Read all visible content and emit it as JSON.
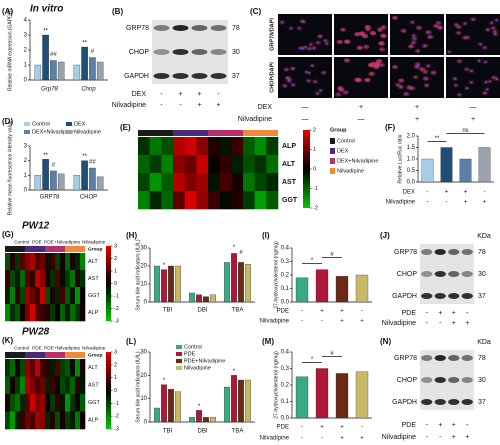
{
  "title": "In vitro",
  "sections": [
    "PW12",
    "PW28"
  ],
  "chart_data": [
    {
      "type": "bar",
      "label": "(A)",
      "ylabel": "Relative mRNA expression (GAPDH)",
      "categories": [
        "Grp78",
        "Chop"
      ],
      "series": [
        {
          "color": "#a6cde3",
          "values": [
            1.0,
            1.0
          ]
        },
        {
          "color": "#1f4e79",
          "values": [
            3.0,
            2.2
          ]
        },
        {
          "color": "#5b7fa6",
          "values": [
            1.3,
            1.5
          ]
        },
        {
          "color": "#9aa3ad",
          "values": [
            1.2,
            1.2
          ]
        }
      ],
      "ylim": [
        0,
        4
      ],
      "yticks": [
        0,
        1,
        2,
        3,
        4
      ],
      "annotations": [
        "**",
        "##",
        "**",
        "#"
      ]
    },
    {
      "type": "bar",
      "label": "(D)",
      "ylabel": "Relative mean fluorescence intensity value",
      "categories": [
        "GRP78",
        "CHOP"
      ],
      "series": [
        {
          "name": "Control",
          "color": "#a6cde3",
          "values": [
            1.0,
            1.0
          ]
        },
        {
          "name": "DEX",
          "color": "#1f4e79",
          "values": [
            2.1,
            2.0
          ]
        },
        {
          "name": "DEX+Nilvadipine",
          "color": "#5b7fa6",
          "values": [
            1.3,
            1.5
          ]
        },
        {
          "name": "Nilvadipine",
          "color": "#9aa3ad",
          "values": [
            1.1,
            0.9
          ]
        }
      ],
      "ylim": [
        0,
        3
      ],
      "yticks": [
        0,
        1,
        2,
        3
      ],
      "annotations": [
        "**",
        "#",
        "**",
        "##"
      ]
    },
    {
      "type": "heatmap",
      "label": "(E)",
      "rows": [
        "ALP",
        "ALT",
        "AST",
        "GGT"
      ],
      "values": [
        [
          -0.5,
          -1.2,
          -0.8,
          1.5,
          1.8,
          1.2,
          0.3,
          -0.2,
          0.5,
          -0.9,
          -1.4,
          -0.6
        ],
        [
          -1.0,
          -0.6,
          -1.3,
          1.2,
          0.9,
          1.7,
          0.1,
          0.4,
          -0.3,
          -0.8,
          -0.5,
          -1.1
        ],
        [
          -0.7,
          -1.5,
          -0.9,
          1.6,
          1.1,
          1.4,
          -0.2,
          0.6,
          0.2,
          -1.2,
          -0.7,
          -0.4
        ],
        [
          -1.3,
          -0.4,
          -1.0,
          0.8,
          1.9,
          1.3,
          0.5,
          -0.1,
          0.3,
          -0.6,
          -1.6,
          -0.9
        ]
      ],
      "clim": [
        -2,
        2
      ],
      "colorbar_ticks": [
        2,
        1,
        0,
        -1,
        -2
      ],
      "group_title": "Group",
      "groups": [
        {
          "name": "Control",
          "color": "#1a1a1a"
        },
        {
          "name": "DEX",
          "color": "#4b2a7a"
        },
        {
          "name": "DEX+Nilvadipine",
          "color": "#b8306a"
        },
        {
          "name": "Nilvadipine",
          "color": "#ee8a3a"
        }
      ]
    },
    {
      "type": "bar",
      "label": "(F)",
      "ylabel": "Relative Luc/Ruc ratio",
      "values": [
        1.0,
        1.5,
        1.0,
        1.5
      ],
      "colors": [
        "#a6cde3",
        "#1f4e79",
        "#5b7fa6",
        "#9aa3ad"
      ],
      "conditions": [
        {
          "name": "DEX",
          "signs": [
            "-",
            "+",
            "+",
            "-"
          ]
        },
        {
          "name": "Nilvadipine",
          "signs": [
            "-",
            "-",
            "+",
            "+"
          ]
        }
      ],
      "ylim": [
        0,
        2
      ],
      "yticks": [
        {
          "value": 0,
          "label": "0.0"
        },
        {
          "value": 0.5,
          "label": "0.5"
        },
        {
          "value": 1,
          "label": "1.0"
        },
        {
          "value": 1.5,
          "label": "1.5"
        },
        {
          "value": 2,
          "label": "2.0"
        }
      ],
      "annotations": [
        "**",
        "ns"
      ]
    },
    {
      "type": "heatmap",
      "label": "(G)",
      "rows": [
        "ALT",
        "AST",
        "GGT",
        "ALP"
      ],
      "values": [
        [
          -1.2,
          0.5,
          -0.8,
          1.1,
          1.8,
          2.2,
          0.9,
          1.5,
          -0.3,
          0.7,
          -1.0,
          0.2,
          -1.5,
          0.4,
          -0.6,
          -2.0
        ],
        [
          0.8,
          -1.1,
          -0.4,
          -1.6,
          1.2,
          0.6,
          2.4,
          1.9,
          0.3,
          -0.8,
          1.0,
          -0.2,
          -0.9,
          -1.8,
          0.5,
          -0.7
        ],
        [
          -0.5,
          -1.9,
          0.6,
          -1.0,
          2.0,
          1.4,
          0.8,
          2.6,
          -1.2,
          0.4,
          -0.6,
          0.9,
          -1.4,
          -0.3,
          -2.2,
          0.1
        ],
        [
          -2.1,
          -0.7,
          -1.3,
          0.2,
          1.6,
          2.8,
          1.1,
          0.7,
          0.5,
          -0.9,
          0.1,
          -1.5,
          -0.4,
          -1.7,
          -0.8,
          0.3
        ]
      ],
      "clim": [
        -3,
        3
      ],
      "colorbar_ticks": [
        3,
        2,
        1,
        0,
        -1,
        -2,
        -3
      ],
      "group_title": "Group",
      "groups": [
        {
          "name": "Control",
          "color": "#1a1a1a"
        },
        {
          "name": "PDE",
          "color": "#4b2a7a"
        },
        {
          "name": "PDE+Nilvadipine",
          "color": "#b8306a"
        },
        {
          "name": "Nilvadipine",
          "color": "#ee8a3a"
        }
      ]
    },
    {
      "type": "bar",
      "label": "(H)",
      "ylabel": "Serum bile acid indicators (IU/L)",
      "categories": [
        "TBI",
        "DBI",
        "TBA"
      ],
      "series": [
        {
          "color": "#3aaa85",
          "values": [
            20,
            5,
            22
          ]
        },
        {
          "color": "#b0153a",
          "values": [
            18,
            4,
            27
          ]
        },
        {
          "color": "#6b2a14",
          "values": [
            20,
            3,
            22
          ]
        },
        {
          "color": "#c8b86a",
          "values": [
            20,
            4,
            21
          ]
        }
      ],
      "ylim": [
        0,
        30
      ],
      "yticks": [
        0,
        10,
        20,
        30
      ],
      "annotations": [
        "*",
        "*",
        "#"
      ]
    },
    {
      "type": "bar",
      "label": "(I)",
      "ylabel": "27-hydroxycholesterol (ng/mg)",
      "values": [
        0.18,
        0.24,
        0.19,
        0.2
      ],
      "colors": [
        "#3aaa85",
        "#b0153a",
        "#6b2a14",
        "#c8b86a"
      ],
      "conditions": [
        {
          "name": "PDE",
          "signs": [
            "-",
            "+",
            "+",
            "-"
          ]
        },
        {
          "name": "Nilvadipine",
          "signs": [
            "-",
            "-",
            "+",
            "+"
          ]
        }
      ],
      "ylim": [
        0,
        0.4
      ],
      "yticks": [
        {
          "value": 0,
          "label": "0.0"
        },
        {
          "value": 0.1,
          "label": "0.1"
        },
        {
          "value": 0.2,
          "label": "0.2"
        },
        {
          "value": 0.3,
          "label": "0.3"
        },
        {
          "value": 0.4,
          "label": "0.4"
        }
      ],
      "annotations": [
        "*",
        "#"
      ]
    },
    {
      "type": "heatmap",
      "label": "(K)",
      "rows": [
        "ALT",
        "AST",
        "GGT",
        "ALP"
      ],
      "values": [
        [
          -0.8,
          -1.6,
          0.3,
          -1.1,
          1.9,
          1.2,
          2.5,
          0.8,
          0.6,
          -0.4,
          1.1,
          -0.9,
          -1.3,
          -0.2,
          -2.1,
          0.4
        ],
        [
          -1.4,
          0.2,
          -0.9,
          -2.0,
          2.2,
          1.7,
          0.9,
          1.4,
          -0.5,
          0.8,
          0.2,
          -1.1,
          -0.7,
          -1.5,
          0.6,
          -0.3
        ],
        [
          0.4,
          -1.2,
          -1.7,
          -0.6,
          1.1,
          2.7,
          1.6,
          2.0,
          0.1,
          -0.9,
          0.7,
          -0.3,
          -2.2,
          -0.8,
          -0.1,
          -1.4
        ],
        [
          -1.1,
          -2.3,
          -0.5,
          0.6,
          1.5,
          0.9,
          2.1,
          1.8,
          -0.6,
          0.5,
          -1.2,
          0.3,
          -0.9,
          -0.4,
          -1.8,
          0.2
        ]
      ],
      "clim": [
        -3,
        3
      ],
      "colorbar_ticks": [
        3,
        2,
        1,
        0,
        -1,
        -2,
        -3
      ],
      "group_title": "Group",
      "groups": [
        {
          "name": "Control",
          "color": "#1a1a1a"
        },
        {
          "name": "PDE",
          "color": "#4b2a7a"
        },
        {
          "name": "PDE+Nilvadipine",
          "color": "#b8306a"
        },
        {
          "name": "Nilvadipine",
          "color": "#ee8a3a"
        }
      ]
    },
    {
      "type": "bar",
      "label": "(L)",
      "ylabel": "Serum bile acid indicators (IU/L)",
      "categories": [
        "TBI",
        "DBI",
        "TBA"
      ],
      "series": [
        {
          "name": "Control",
          "color": "#3aaa85",
          "values": [
            6,
            2,
            15
          ]
        },
        {
          "name": "PDE",
          "color": "#b0153a",
          "values": [
            16,
            5,
            20
          ]
        },
        {
          "name": "PDE+Nilvadipine",
          "color": "#6b2a14",
          "values": [
            14,
            2,
            18
          ]
        },
        {
          "name": "Nilvadipine",
          "color": "#c8b86a",
          "values": [
            13,
            2,
            18
          ]
        }
      ],
      "ylim": [
        0,
        30
      ],
      "yticks": [
        0,
        10,
        20,
        30
      ],
      "annotations": [
        "*",
        "*",
        "*"
      ]
    },
    {
      "type": "bar",
      "label": "(M)",
      "ylabel": "27-hydroxycholesterol (ng/mg)",
      "values": [
        0.25,
        0.3,
        0.27,
        0.28
      ],
      "colors": [
        "#3aaa85",
        "#b0153a",
        "#6b2a14",
        "#c8b86a"
      ],
      "conditions": [
        {
          "name": "PDE",
          "signs": [
            "-",
            "+",
            "+",
            "-"
          ]
        },
        {
          "name": "Nilvadipine",
          "signs": [
            "-",
            "-",
            "+",
            "+"
          ]
        }
      ],
      "ylim": [
        0,
        0.4
      ],
      "yticks": [
        {
          "value": 0,
          "label": "0.0"
        },
        {
          "value": 0.1,
          "label": "0.1"
        },
        {
          "value": 0.2,
          "label": "0.2"
        },
        {
          "value": 0.3,
          "label": "0.3"
        },
        {
          "value": 0.4,
          "label": "0.4"
        }
      ],
      "annotations": [
        "*",
        "#"
      ]
    }
  ],
  "micrographs": {
    "label": "(C)",
    "stains": [
      "GRP78/DAPI",
      "CHOP/DAPI"
    ],
    "conditions": [
      {
        "name": "DEX",
        "signs": [
          "—",
          "+",
          "+",
          "—"
        ]
      },
      {
        "name": "Nilvadipine",
        "signs": [
          "—",
          "—",
          "+",
          "+"
        ]
      }
    ]
  },
  "blots": [
    {
      "label": "(B)",
      "proteins": [
        "GRP78",
        "CHOP",
        "GAPDH"
      ],
      "sizes": [
        78,
        30,
        37
      ],
      "conditions": [
        {
          "name": "DEX",
          "signs": [
            "-",
            "+",
            "+",
            "-"
          ]
        },
        {
          "name": "Nilvadipine",
          "signs": [
            "-",
            "-",
            "+",
            "+"
          ]
        }
      ]
    },
    {
      "label": "(J)",
      "unit": "KDa",
      "proteins": [
        "GRP78",
        "CHOP",
        "GAPDH"
      ],
      "sizes": [
        78,
        30,
        37
      ],
      "conditions": [
        {
          "name": "PDE",
          "signs": [
            "-",
            "+",
            "+",
            "-"
          ]
        },
        {
          "name": "Nilvadipine",
          "signs": [
            "-",
            "-",
            "+",
            "+"
          ]
        }
      ]
    },
    {
      "label": "(N)",
      "unit": "KDa",
      "proteins": [
        "GRP78",
        "CHOP",
        "GAPDH"
      ],
      "sizes": [
        78,
        30,
        37
      ],
      "conditions": [
        {
          "name": "PDE",
          "signs": [
            "-",
            "+",
            "+",
            "-"
          ]
        },
        {
          "name": "Nilvadipine",
          "signs": [
            "-",
            "-",
            "+",
            "+"
          ]
        }
      ]
    }
  ]
}
